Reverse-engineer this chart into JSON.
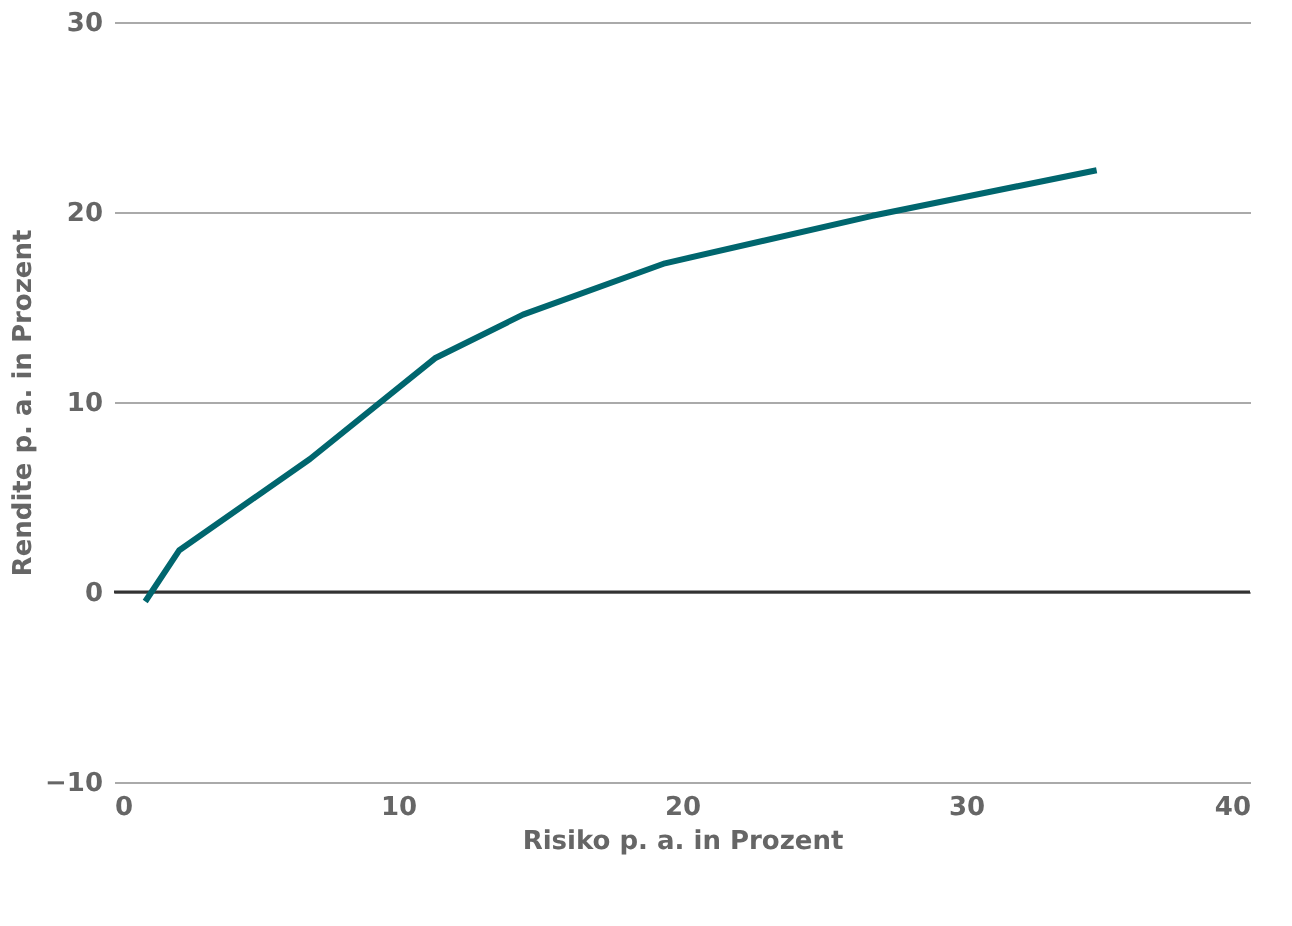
{
  "chart_data": {
    "type": "line",
    "xlabel": "Risiko p. a. in Prozent",
    "ylabel": "Rendite p. a. in Prozent",
    "x": [
      1.1,
      2.3,
      6.9,
      11.3,
      14.4,
      19.4,
      26.7,
      34.6
    ],
    "series": [
      {
        "color": "#00666e",
        "values": [
          -0.5,
          2.2,
          7.0,
          12.3,
          14.6,
          17.3,
          19.8,
          22.2
        ]
      }
    ],
    "xlim": [
      0,
      40
    ],
    "xticks": [
      0,
      10,
      20,
      30,
      40
    ],
    "ylim": [
      -10,
      30
    ],
    "yticks": [
      -10,
      0,
      10,
      20,
      30
    ],
    "grid": "y",
    "marker": "none",
    "line_style": "solid",
    "ref_lines": [
      {
        "axis": "y",
        "value": 0,
        "color": "#333333"
      }
    ]
  }
}
